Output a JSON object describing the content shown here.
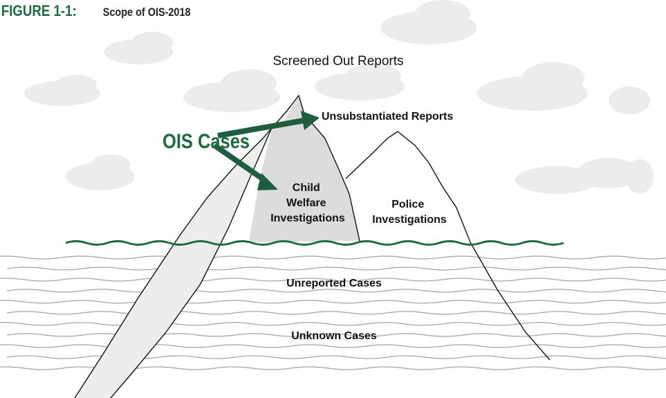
{
  "figure": {
    "number": "FIGURE 1-1:",
    "title": "Scope of OIS-2018"
  },
  "labels": {
    "screened_out": "Screened Out Reports",
    "ois_cases": "OIS Cases",
    "unsubstantiated": "Unsubstantiated Reports",
    "child_welfare": [
      "Child",
      "Welfare",
      "Investigations"
    ],
    "police": [
      "Police",
      "Investigations"
    ],
    "unreported": "Unreported Cases",
    "unknown": "Unknown Cases"
  }
}
